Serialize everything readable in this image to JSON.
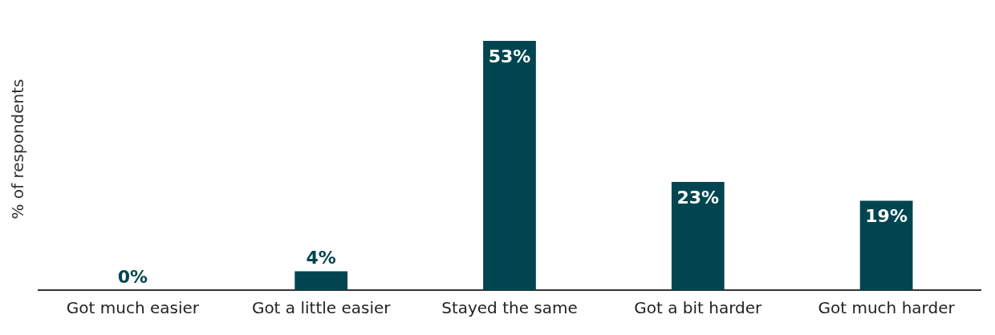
{
  "chart_data": {
    "type": "bar",
    "ylabel": "% of respondents",
    "categories": [
      "Got much easier",
      "Got a little easier",
      "Stayed the same",
      "Got a bit harder",
      "Got much harder"
    ],
    "values": [
      0,
      4,
      53,
      23,
      19
    ],
    "value_labels": [
      "0%",
      "4%",
      "53%",
      "23%",
      "19%"
    ],
    "color": "#004550",
    "grid": false,
    "legend": false
  }
}
